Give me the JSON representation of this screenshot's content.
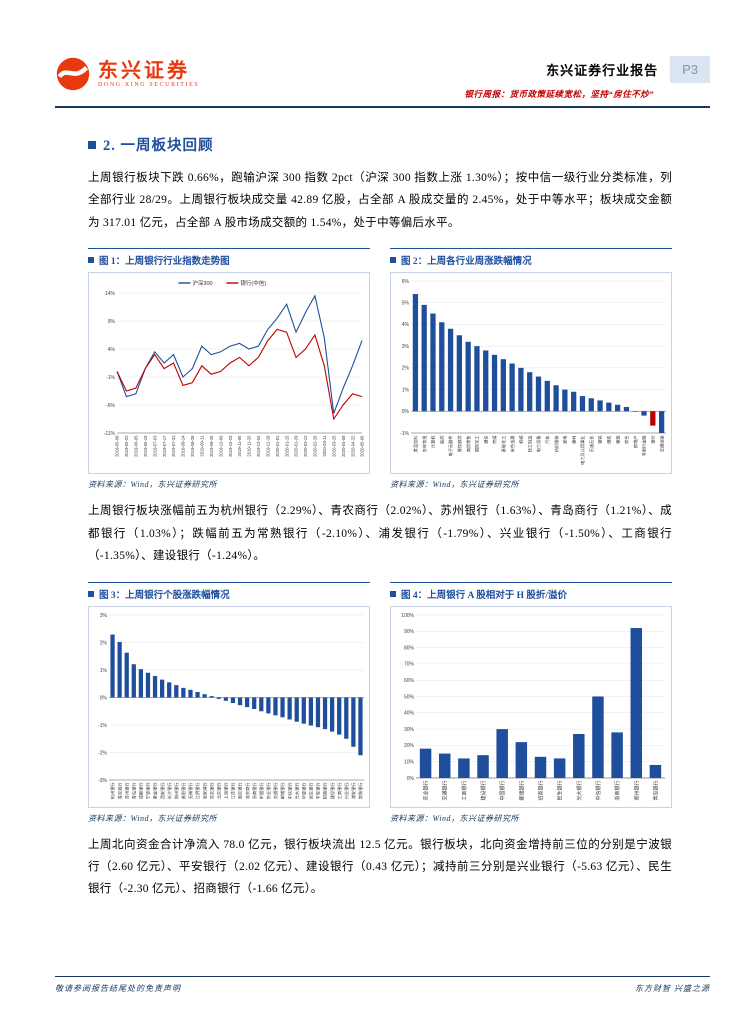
{
  "header": {
    "logo_cn": "东兴证券",
    "logo_en": "DONG XING SECURITIES",
    "report_type": "东兴证券行业报告",
    "page_number": "P3",
    "subtitle": "银行周报：货币政策延续宽松，坚持“房住不炒”"
  },
  "section": {
    "title": "2. 一周板块回顾"
  },
  "paragraphs": [
    "上周银行板块下跌 0.66%，跑输沪深 300 指数 2pct（沪深 300 指数上涨 1.30%）；按中信一级行业分类标准，列全部行业 28/29。上周银行板块成交量 42.89 亿股，占全部 A 股成交量的 2.45%，处于中等水平；板块成交金额为 317.01 亿元，占全部 A 股市场成交额的 1.54%，处于中等偏后水平。",
    "上周银行板块涨幅前五为杭州银行（2.29%）、青农商行（2.02%）、苏州银行（1.63%）、青岛商行（1.21%）、成都银行（1.03%）；跌幅前五为常熟银行（-2.10%）、浦发银行（-1.79%）、兴业银行（-1.50%）、工商银行（-1.35%）、建设银行（-1.24%）。",
    "上周北向资金合计净流入 78.0 亿元，银行板块流出 12.5 亿元。银行板块，北向资金增持前三位的分别是宁波银行（2.60 亿元）、平安银行（2.02 亿元）、建设银行（0.43 亿元）；减持前三分别是兴业银行（-5.63 亿元）、民生银行（-2.30 亿元）、招商银行（-1.66 亿元）。"
  ],
  "figures": [
    {
      "title": "图 1：上周银行行业指数走势图",
      "source": "资料来源：Wind，东兴证券研究所"
    },
    {
      "title": "图 2：上周各行业周涨跌幅情况",
      "source": "资料来源：Wind，东兴证券研究所"
    },
    {
      "title": "图 3：上周银行个股涨跌幅情况",
      "source": "资料来源：Wind，东兴证券研究所"
    },
    {
      "title": "图 4：上周银行 A 股相对于 H 股折/溢价",
      "source": "资料来源：Wind，东兴证券研究所"
    }
  ],
  "footer": {
    "left": "敬请参阅报告结尾处的免责声明",
    "right": "东方财智 兴盛之源"
  },
  "chart_data": [
    {
      "type": "line",
      "title": "上周银行行业指数走势图",
      "x": [
        "2019-05-08",
        "2019-05-22",
        "2019-06-05",
        "2019-06-19",
        "2019-07-03",
        "2019-07-17",
        "2019-07-31",
        "2019-08-14",
        "2019-08-28",
        "2019-09-11",
        "2019-09-25",
        "2019-10-09",
        "2019-10-23",
        "2019-11-06",
        "2019-11-20",
        "2019-12-04",
        "2019-12-18",
        "2020-01-01",
        "2020-01-15",
        "2020-01-29",
        "2020-02-12",
        "2020-02-26",
        "2020-03-11",
        "2020-03-25",
        "2020-04-08",
        "2020-04-22",
        "2020-05-06"
      ],
      "series": [
        {
          "name": "沪深300",
          "color": "#1F4E9C",
          "values": [
            0,
            -4.5,
            -4,
            0.5,
            3.5,
            1.5,
            3,
            -1,
            0.5,
            4.5,
            3,
            3.5,
            4.5,
            5,
            4,
            4.5,
            7.5,
            9.5,
            12,
            7,
            10.5,
            13.5,
            6,
            -7.5,
            -3,
            1,
            5.5
          ]
        },
        {
          "name": "银行(中信)",
          "color": "#C00000",
          "values": [
            0,
            -3.5,
            -3,
            0.5,
            3,
            0.5,
            1.5,
            -2.5,
            -2,
            1,
            -0.5,
            0,
            1.5,
            2.5,
            1,
            2.5,
            5.5,
            7.5,
            7,
            2.5,
            4,
            6.5,
            1,
            -8.5,
            -6,
            -4,
            -4.5
          ]
        }
      ],
      "ylim": [
        -11,
        14
      ],
      "yticks": [
        14,
        9,
        4,
        -1,
        -6,
        -11
      ],
      "legend_position": "top"
    },
    {
      "type": "bar",
      "title": "上周各行业周涨跌幅情况",
      "categories": [
        "食品饮料",
        "农林牧渔",
        "计算机",
        "医药",
        "电子元器件",
        "餐饮旅游",
        "商贸零售",
        "国防军工",
        "通信",
        "传媒",
        "基础化工",
        "有色金属",
        "机械",
        "轻工制造",
        "电力设备",
        "汽车",
        "纺织服装",
        "家电",
        "建材",
        "电力及公用事业",
        "石油石化",
        "钢铁",
        "煤炭",
        "建筑",
        "综合",
        "房地产",
        "非银行金融",
        "银行",
        "交通运输"
      ],
      "values": [
        5.4,
        4.9,
        4.5,
        4.1,
        3.8,
        3.5,
        3.2,
        3.0,
        2.8,
        2.6,
        2.4,
        2.2,
        2.0,
        1.8,
        1.6,
        1.4,
        1.2,
        1.0,
        0.9,
        0.7,
        0.6,
        0.5,
        0.4,
        0.3,
        0.2,
        0.0,
        -0.2,
        -0.66,
        -1.0
      ],
      "bar_color": "#1F4E9C",
      "highlight_indices": [
        27
      ],
      "highlight_color": "#C00000",
      "ylim": [
        -1,
        6
      ],
      "yticks": [
        6,
        5,
        4,
        3,
        2,
        1,
        0,
        -1
      ]
    },
    {
      "type": "bar",
      "title": "上周银行个股涨跌幅情况",
      "categories": [
        "杭州银行",
        "青农商行",
        "苏州银行",
        "青岛银行",
        "成都银行",
        "宁波银行",
        "紫金银行",
        "西安银行",
        "长沙银行",
        "郑州银行",
        "贵阳银行",
        "无锡银行",
        "江阴银行",
        "张家港行",
        "苏农银行",
        "北京银行",
        "上海银行",
        "江苏银行",
        "南京银行",
        "渝农商行",
        "浙商银行",
        "中国银行",
        "农业银行",
        "交通银行",
        "邮储银行",
        "中信银行",
        "光大银行",
        "华夏银行",
        "民生银行",
        "平安银行",
        "招商银行",
        "建设银行",
        "工商银行",
        "兴业银行",
        "浦发银行",
        "常熟银行"
      ],
      "values": [
        2.29,
        2.02,
        1.63,
        1.21,
        1.03,
        0.9,
        0.78,
        0.65,
        0.55,
        0.45,
        0.35,
        0.28,
        0.2,
        0.12,
        0.05,
        -0.05,
        -0.12,
        -0.2,
        -0.28,
        -0.35,
        -0.42,
        -0.5,
        -0.58,
        -0.65,
        -0.72,
        -0.8,
        -0.88,
        -0.95,
        -1.02,
        -1.08,
        -1.15,
        -1.24,
        -1.35,
        -1.5,
        -1.79,
        -2.1
      ],
      "bar_color": "#1F4E9C",
      "ylim": [
        -3,
        3
      ],
      "yticks": [
        3,
        2,
        1,
        0,
        -1,
        -2,
        -3
      ]
    },
    {
      "type": "bar",
      "title": "上周银行A股相对于H股折/溢价",
      "categories": [
        "农业银行",
        "交通银行",
        "工商银行",
        "建设银行",
        "中国银行",
        "邮储银行",
        "招商银行",
        "民生银行",
        "光大银行",
        "中信银行",
        "浙商银行",
        "郑州银行",
        "青岛银行"
      ],
      "values": [
        18,
        15,
        12,
        14,
        30,
        22,
        13,
        12,
        27,
        50,
        28,
        92,
        8
      ],
      "bar_color": "#1F4E9C",
      "ylim": [
        0,
        100
      ],
      "yticks": [
        100,
        90,
        80,
        70,
        60,
        50,
        40,
        30,
        20,
        10,
        0
      ]
    }
  ]
}
